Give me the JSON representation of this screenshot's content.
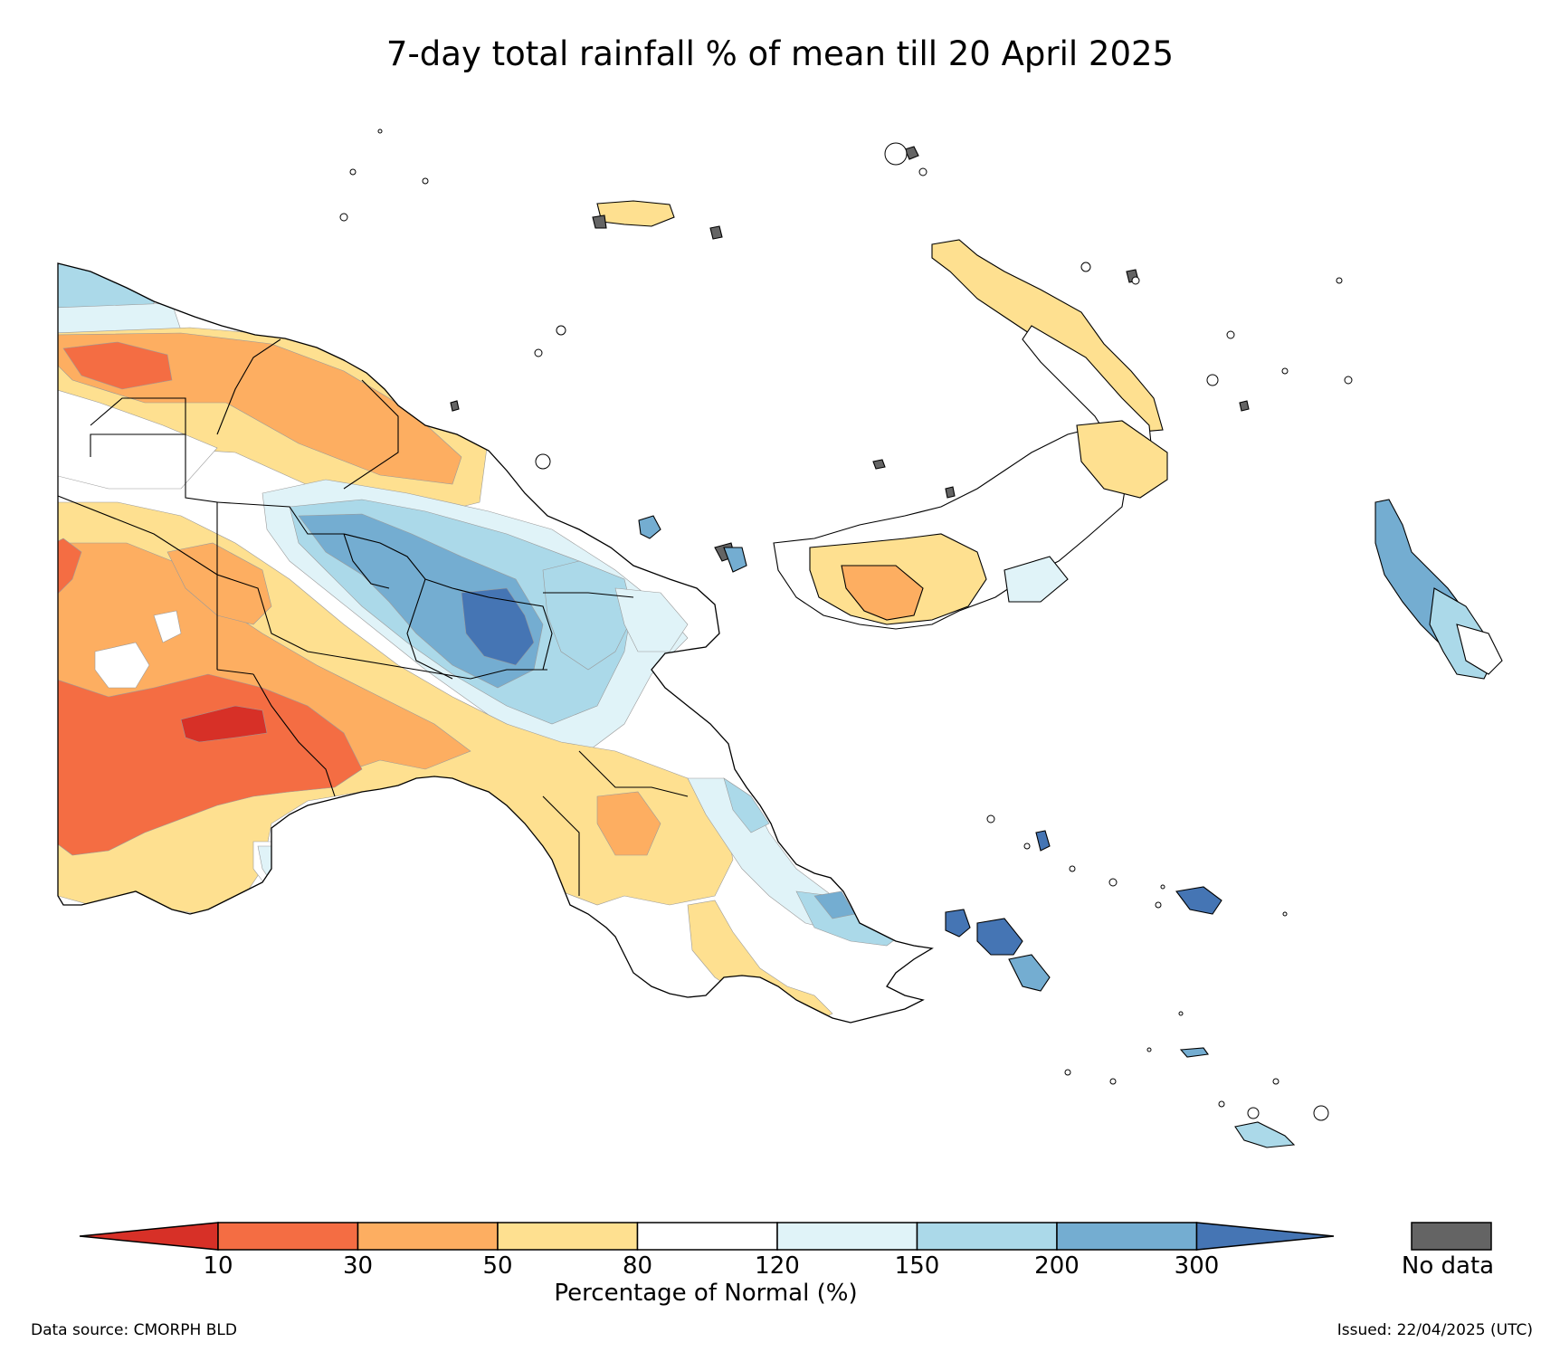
{
  "title": "7-day total rainfall % of mean till 20 April 2025",
  "colorbar": {
    "label": "Percentage of Normal (%)",
    "ticks": [
      "10",
      "30",
      "50",
      "80",
      "120",
      "150",
      "200",
      "300"
    ],
    "bins": [
      {
        "range": "<10",
        "color": "#d73027"
      },
      {
        "range": "10-30",
        "color": "#f46d43"
      },
      {
        "range": "30-50",
        "color": "#fdae61"
      },
      {
        "range": "50-80",
        "color": "#fee090"
      },
      {
        "range": "80-120",
        "color": "#ffffff"
      },
      {
        "range": "120-150",
        "color": "#e0f3f8"
      },
      {
        "range": "150-200",
        "color": "#abd9e9"
      },
      {
        "range": "200-300",
        "color": "#74add1"
      },
      {
        "range": ">300",
        "color": "#4575b4"
      }
    ],
    "no_data": {
      "label": "No data",
      "color": "#646464"
    }
  },
  "footer": {
    "data_source": "Data source: CMORPH BLD",
    "issued": "Issued: 22/04/2025 (UTC)"
  },
  "map": {
    "region": "Papua New Guinea",
    "projection": "PlateCarree",
    "colors": {
      "outline": "#000000",
      "province_border": "#000000",
      "contour_edge": "#9a9a9a"
    }
  }
}
